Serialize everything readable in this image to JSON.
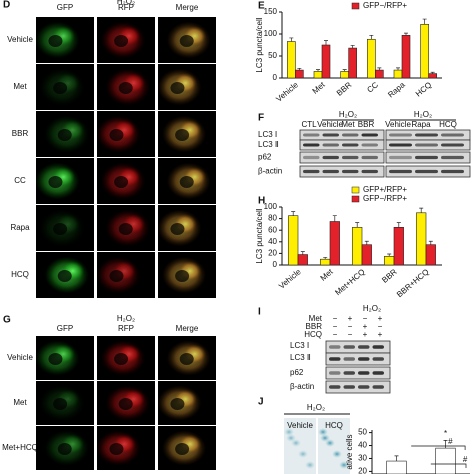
{
  "chart_data": [
    {
      "type": "bar",
      "label": "E",
      "y_label": "LC3 puncta/cell",
      "categories": [
        "Vehicle",
        "Met",
        "BBR",
        "CC",
        "Rapa",
        "HCQ"
      ],
      "series": [
        {
          "color": "#ffee00",
          "values": [
            83,
            15,
            15,
            88,
            18,
            122
          ],
          "errors": [
            8,
            4,
            4,
            9,
            5,
            12
          ]
        },
        {
          "name": "GFP−/RFP+",
          "color": "#e3212a",
          "values": [
            18,
            75,
            68,
            18,
            97,
            10
          ],
          "errors": [
            4,
            10,
            6,
            5,
            5,
            3
          ]
        }
      ],
      "ylim": [
        0,
        150
      ],
      "yticks": [
        0,
        50,
        100,
        150
      ]
    },
    {
      "type": "bar",
      "label": "H",
      "y_label": "LC3 puncta/cell",
      "categories": [
        "Vehicle",
        "Met",
        "Met+HCQ",
        "BBR",
        "BBR+HCQ"
      ],
      "series": [
        {
          "name": "GFP+/RFP+",
          "color": "#ffee00",
          "values": [
            85,
            10,
            65,
            15,
            90
          ],
          "errors": [
            7,
            3,
            8,
            4,
            8
          ]
        },
        {
          "name": "GFP−/RFP+",
          "color": "#e3212a",
          "values": [
            18,
            75,
            35,
            65,
            35
          ],
          "errors": [
            5,
            10,
            6,
            8,
            6
          ]
        }
      ],
      "ylim": [
        0,
        100
      ],
      "yticks": [
        0,
        20,
        40,
        60,
        80,
        100
      ]
    },
    {
      "type": "bar",
      "y_label": "ative cells",
      "categories": [
        null,
        null
      ],
      "series": [
        {
          "color": "#ffffff",
          "values": [
            28,
            38
          ],
          "errors": [
            4,
            6
          ]
        }
      ],
      "annotations": [
        "*",
        "#",
        "#"
      ],
      "ylim": [
        18,
        52
      ],
      "yticks": [
        20,
        30,
        40,
        50
      ]
    }
  ],
  "micrographs": [
    {
      "label": "D",
      "title": "H₂O₂",
      "columns": [
        "GFP",
        "RFP",
        "Merge"
      ],
      "rows": [
        "Vehicle",
        "Met",
        "BBR",
        "CC",
        "Rapa",
        "HCQ"
      ]
    },
    {
      "label": "G",
      "title": "H₂O₂",
      "columns": [
        "GFP",
        "RFP",
        "Merge"
      ],
      "rows": [
        "Vehicle",
        "Met",
        "Met+HCQ"
      ]
    }
  ],
  "blot_f": {
    "label": "F",
    "control": "CTL",
    "groups": [
      {
        "title": "H₂O₂",
        "lanes": [
          "Vehicle",
          "Met",
          "BBR"
        ]
      },
      {
        "title": "H₂O₂",
        "lanes": [
          "Vehicle",
          "Rapa",
          "HCQ"
        ]
      }
    ],
    "rows": [
      "LC3 Ⅰ",
      "LC3 Ⅱ",
      "p62",
      "β-actin"
    ]
  },
  "blot_i": {
    "label": "I",
    "title": "H₂O₂",
    "treatments": [
      {
        "name": "Met",
        "signs": [
          "−",
          "+",
          "−",
          "+"
        ]
      },
      {
        "name": "BBR",
        "signs": [
          "−",
          "−",
          "+",
          "−"
        ]
      },
      {
        "name": "HCQ",
        "signs": [
          "−",
          "−",
          "+",
          "+"
        ]
      }
    ],
    "rows": [
      "LC3 Ⅰ",
      "LC3 Ⅱ",
      "p62",
      "β-actin"
    ]
  },
  "panel_j": {
    "label": "J",
    "title": "H₂O₂",
    "images": [
      "Vehicle",
      "HCQ"
    ]
  }
}
